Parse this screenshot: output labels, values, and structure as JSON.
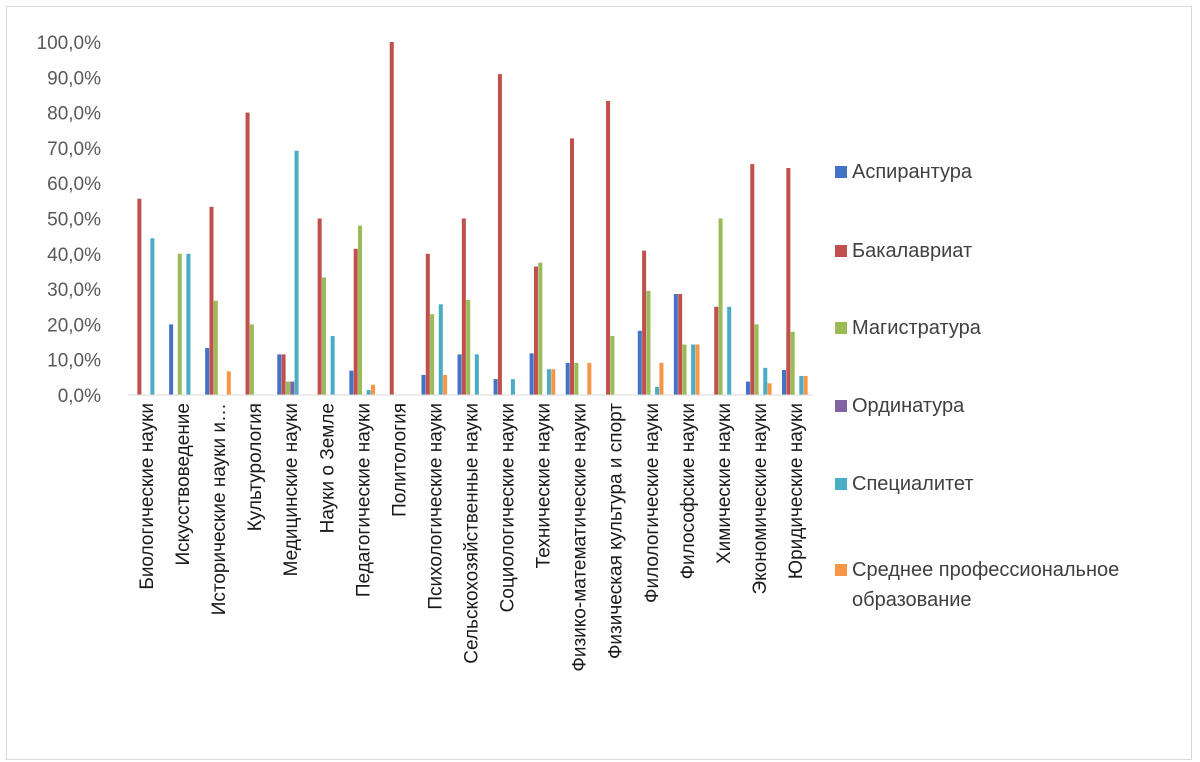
{
  "chart_data": {
    "type": "bar",
    "title": "",
    "xlabel": "",
    "ylabel": "",
    "ylim": [
      0,
      100
    ],
    "y_tick_labels": [
      "0,0%",
      "10,0%",
      "20,0%",
      "30,0%",
      "40,0%",
      "50,0%",
      "60,0%",
      "70,0%",
      "80,0%",
      "90,0%",
      "100,0%"
    ],
    "y_ticks": [
      0,
      10,
      20,
      30,
      40,
      50,
      60,
      70,
      80,
      90,
      100
    ],
    "grid": false,
    "legend_position": "right",
    "categories": [
      "Биологические науки",
      "Искусствоведение",
      "Исторические науки и…",
      "Культурология",
      "Медицинские науки",
      "Науки о Земле",
      "Педагогические науки",
      "Политология",
      "Психологические науки",
      "Сельскохозяйственные науки",
      "Социологические науки",
      "Технические науки",
      "Физико-математические науки",
      "Физическая культура и спорт",
      "Филологические науки",
      "Философские науки",
      "Химические науки",
      "Экономические науки",
      "Юридические науки"
    ],
    "series": [
      {
        "name": "Аспирантура",
        "color": "#4472C4",
        "values": [
          0,
          20.0,
          13.3,
          0,
          11.5,
          0,
          6.9,
          0,
          5.7,
          11.5,
          4.5,
          11.8,
          9.1,
          0,
          18.2,
          28.6,
          0,
          3.8,
          7.1
        ]
      },
      {
        "name": "Бакалавриат",
        "color": "#C0504D",
        "values": [
          55.6,
          0,
          53.3,
          80.0,
          11.5,
          50.0,
          41.4,
          100.0,
          40.0,
          50.0,
          90.9,
          36.4,
          72.7,
          83.3,
          40.9,
          28.6,
          25.0,
          65.4,
          64.3
        ]
      },
      {
        "name": "Магистратура",
        "color": "#9BBB59",
        "values": [
          0,
          40.0,
          26.7,
          20.0,
          3.8,
          33.3,
          48.0,
          0,
          22.9,
          26.9,
          0,
          37.5,
          9.1,
          16.7,
          29.5,
          14.3,
          50.0,
          20.0,
          17.9
        ]
      },
      {
        "name": "Ординатура",
        "color": "#8064A2",
        "values": [
          0,
          0,
          0,
          0,
          3.8,
          0,
          0,
          0,
          0,
          0,
          0,
          0,
          0,
          0,
          0,
          0,
          0,
          0,
          0
        ]
      },
      {
        "name": "Специалитет",
        "color": "#4BACC6",
        "values": [
          44.4,
          40.0,
          0,
          0,
          69.2,
          16.7,
          1.4,
          0,
          25.7,
          11.5,
          4.5,
          7.3,
          0,
          0,
          2.3,
          14.3,
          25.0,
          7.7,
          5.4
        ]
      },
      {
        "name": "Среднее профессиональное образование",
        "color": "#F79646",
        "values": [
          0,
          0,
          6.7,
          0,
          0,
          0,
          2.9,
          0,
          5.7,
          0,
          0,
          7.3,
          9.1,
          0,
          9.1,
          14.3,
          0,
          3.3,
          5.4
        ]
      }
    ]
  }
}
